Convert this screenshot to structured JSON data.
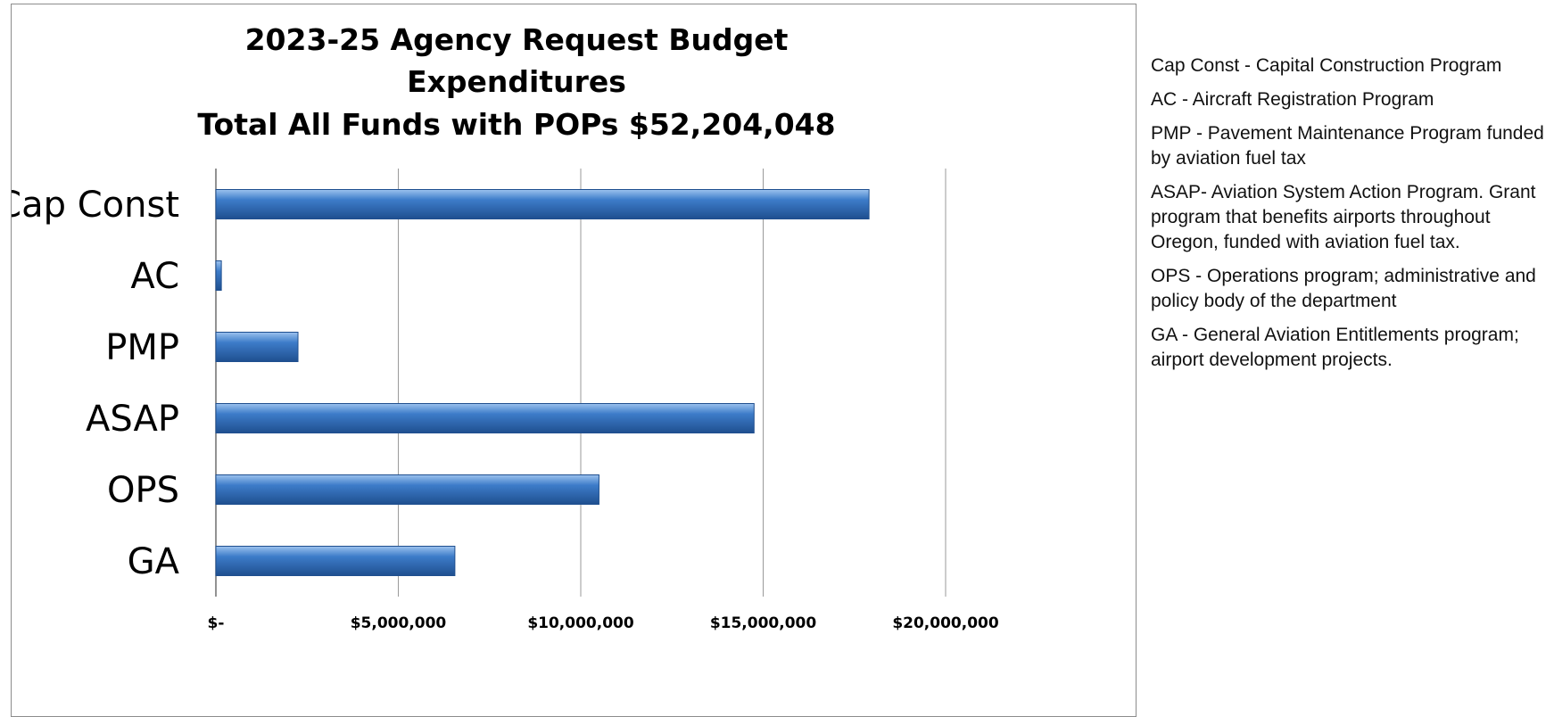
{
  "chart_data": {
    "type": "bar",
    "orientation": "horizontal",
    "title_lines": [
      "2023-25 Agency Request Budget",
      "Expenditures",
      "Total All Funds with POPs  $52,204,048"
    ],
    "categories": [
      "Cap Const",
      "AC",
      "PMP",
      "ASAP",
      "OPS",
      "GA"
    ],
    "values": [
      17900000,
      150000,
      2250000,
      14750000,
      10500000,
      6550000
    ],
    "xlim": [
      0,
      20000000
    ],
    "x_ticks": [
      0,
      5000000,
      10000000,
      15000000,
      20000000
    ],
    "x_tick_labels": [
      "$-",
      "$5,000,000",
      "$10,000,000",
      "$15,000,000",
      "$20,000,000"
    ],
    "grid": "vertical",
    "legend": "none",
    "bar_color": "#3d7cc9",
    "bar_highlight": "#9cc2ee",
    "bar_shadow": "#1f4f8f"
  },
  "notes": [
    "Cap Const - Capital Construction Program",
    "AC - Aircraft Registration Program",
    "PMP - Pavement Maintenance Program funded  by aviation fuel tax",
    "ASAP- Aviation System Action Program. Grant program that benefits airports throughout Oregon, funded with aviation fuel tax.",
    "OPS - Operations program; administrative and policy body of the department",
    "GA - General Aviation Entitlements program; airport development  projects."
  ]
}
